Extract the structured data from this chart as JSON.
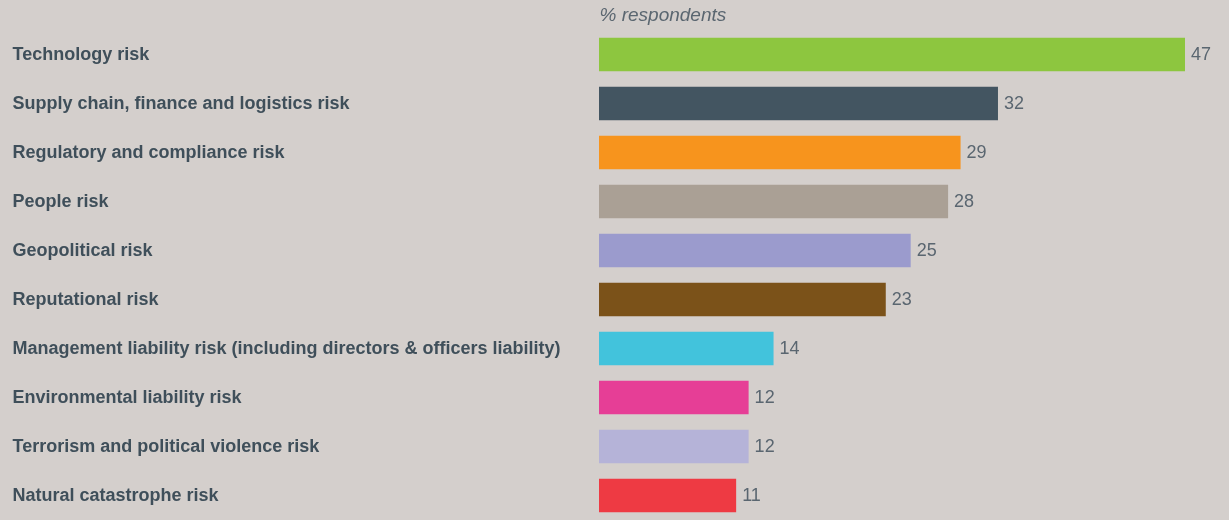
{
  "chart_data": {
    "type": "bar",
    "orientation": "horizontal",
    "xlabel": "% respondents",
    "categories": [
      "Technology risk",
      "Supply chain, finance and logistics risk",
      "Regulatory and compliance risk",
      "People risk",
      "Geopolitical risk",
      "Reputational risk",
      "Management liability risk (including directors & officers liability)",
      "Environmental liability risk",
      "Terrorism and political violence risk",
      "Natural catastrophe risk"
    ],
    "values": [
      47,
      32,
      29,
      28,
      25,
      23,
      14,
      12,
      12,
      11
    ],
    "colors": [
      "#8dc63f",
      "#435561",
      "#f7941d",
      "#aaa095",
      "#9b9bcd",
      "#7b5219",
      "#42c3dc",
      "#e63e96",
      "#b5b3d8",
      "#ee3a43"
    ],
    "data_labels": true
  }
}
